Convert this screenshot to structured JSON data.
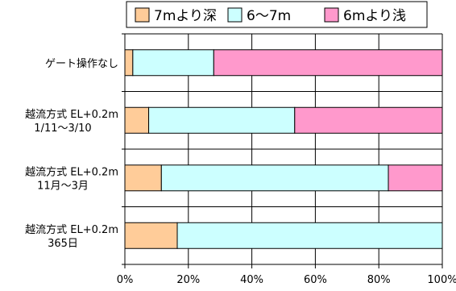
{
  "chart_data": {
    "type": "bar",
    "orientation": "horizontal",
    "stacked": "percent",
    "categories": [
      [
        "ゲート操作なし"
      ],
      [
        "越流方式 EL+0.2m",
        "1/11～3/10"
      ],
      [
        "越流方式 EL+0.2m",
        "11月～3月"
      ],
      [
        "越流方式 EL+0.2m",
        "365日"
      ]
    ],
    "series": [
      {
        "name": "7mより深",
        "color": "#ffcc99",
        "values": [
          2.5,
          7.5,
          11.5,
          16.5
        ]
      },
      {
        "name": "6～7m",
        "color": "#ccffff",
        "values": [
          25.5,
          46,
          71.5,
          83.5
        ]
      },
      {
        "name": "6mより浅",
        "color": "#ff99cc",
        "values": [
          72,
          46.5,
          17,
          0
        ]
      }
    ],
    "xlim": [
      0,
      100
    ],
    "xticks": [
      "0%",
      "20%",
      "40%",
      "60%",
      "80%",
      "100%"
    ],
    "grid": true,
    "legend_position": "top"
  }
}
